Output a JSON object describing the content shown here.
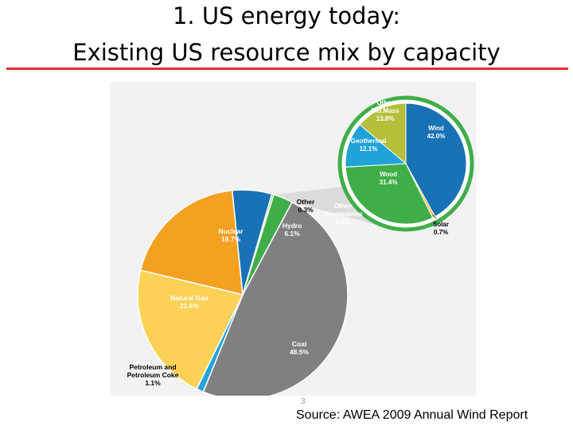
{
  "slide": {
    "title_line1": "1.   US energy today:",
    "title_line2": "Existing US resource mix by capacity",
    "page_number": "3",
    "source": "Source:  AWEA 2009 Annual Wind Report",
    "accent_color": "#e0302a"
  },
  "chart_data": [
    {
      "type": "pie",
      "unit": "%",
      "slices": [
        {
          "label": "Coal",
          "value": 48.5,
          "color": "#808083",
          "label_color": "#ffffff"
        },
        {
          "label": "Petroleum and Petroleum Coke",
          "value": 1.1,
          "color": "#20a3d9",
          "label_color": "#000000"
        },
        {
          "label": "Natural Gas",
          "value": 21.6,
          "color": "#fbd256",
          "label_color": "#ffffff"
        },
        {
          "label": "Nuclear",
          "value": 19.7,
          "color": "#f4a021",
          "label_color": "#ffffff"
        },
        {
          "label": "Hydro",
          "value": 6.1,
          "color": "#1972b6",
          "label_color": "#ffffff"
        },
        {
          "label": "Other",
          "value": 0.3,
          "color": "#8ec63f",
          "label_color": "#000000"
        },
        {
          "label": "Other Renewables",
          "value": 3.0,
          "color": "#3fae49",
          "label_color": "#ffffff"
        }
      ]
    },
    {
      "type": "pie",
      "title": "Other Renewables",
      "unit": "%",
      "slices": [
        {
          "label": "Wind",
          "value": 42.0,
          "color": "#1972b6",
          "label_color": "#ffffff"
        },
        {
          "label": "Solar",
          "value": 0.7,
          "color": "#f2c230",
          "label_color": "#000000"
        },
        {
          "label": "Wood",
          "value": 31.4,
          "color": "#3fae49",
          "label_color": "#ffffff"
        },
        {
          "label": "Geothermal",
          "value": 12.1,
          "color": "#20a3d9",
          "label_color": "#ffffff"
        },
        {
          "label": "Other Bio.Mass",
          "value": 13.8,
          "color": "#b5bf3a",
          "label_color": "#ffffff"
        }
      ],
      "ring_color": "#3fae49"
    }
  ]
}
